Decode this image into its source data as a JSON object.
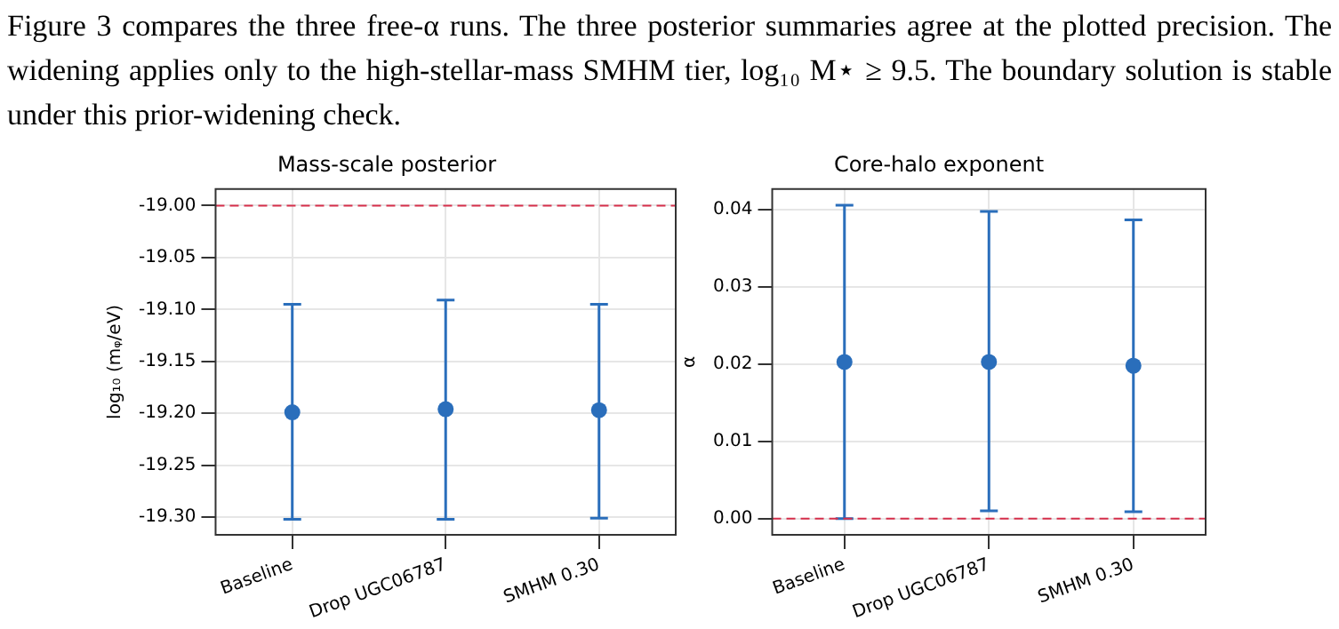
{
  "chart_data": [
    {
      "type": "scatter",
      "title": "Mass-scale posterior",
      "ylabel": "log₁₀ (mᵩ/eV)",
      "categories": [
        "Baseline",
        "Drop UGC06787",
        "SMHM 0.30"
      ],
      "series": [
        {
          "color": "#2a6ebb",
          "values": [
            -19.199,
            -19.196,
            -19.197
          ],
          "errors": [
            [
              -19.302,
              -19.095
            ],
            [
              -19.302,
              -19.091
            ],
            [
              -19.301,
              -19.095
            ]
          ]
        }
      ],
      "ylim": [
        -19.317,
        -18.984
      ],
      "yticks": [
        {
          "value": -19.3,
          "label": "-19.30"
        },
        {
          "value": -19.25,
          "label": "-19.25"
        },
        {
          "value": -19.2,
          "label": "-19.20"
        },
        {
          "value": -19.15,
          "label": "-19.15"
        },
        {
          "value": -19.1,
          "label": "-19.10"
        },
        {
          "value": -19.05,
          "label": "-19.05"
        },
        {
          "value": -19.0,
          "label": "-19.00"
        }
      ],
      "ref_lines": [
        {
          "axis": "y",
          "value": -19.0,
          "color": "#d62f4b",
          "line_style": "dashed"
        }
      ],
      "grid": true,
      "legend": false,
      "marker": "circle",
      "annotations": [
        "Figure 3 compares the three free-α runs. The three posterior summaries agree at the plotted precision. The widening applies only to the high-stellar-mass SMHM tier, log₁₀ M⋆ ≥ 9.5. The boundary solution is stable under this prior-widening check."
      ]
    },
    {
      "type": "scatter",
      "title": "Core-halo exponent",
      "ylabel": "α",
      "categories": [
        "Baseline",
        "Drop UGC06787",
        "SMHM 0.30"
      ],
      "series": [
        {
          "color": "#2a6ebb",
          "values": [
            0.0203,
            0.0203,
            0.0198
          ],
          "errors": [
            [
              0.0,
              0.0406
            ],
            [
              0.001,
              0.0398
            ],
            [
              0.0009,
              0.0387
            ]
          ]
        }
      ],
      "ylim": [
        -0.0021,
        0.0427
      ],
      "yticks": [
        {
          "value": 0,
          "label": "0.00"
        },
        {
          "value": 0.01,
          "label": "0.01"
        },
        {
          "value": 0.02,
          "label": "0.02"
        },
        {
          "value": 0.03,
          "label": "0.03"
        },
        {
          "value": 0.04,
          "label": "0.04"
        }
      ],
      "ref_lines": [
        {
          "axis": "y",
          "value": 0,
          "color": "#d62f4b",
          "line_style": "dashed"
        }
      ],
      "grid": true,
      "legend": false,
      "marker": "circle"
    }
  ]
}
